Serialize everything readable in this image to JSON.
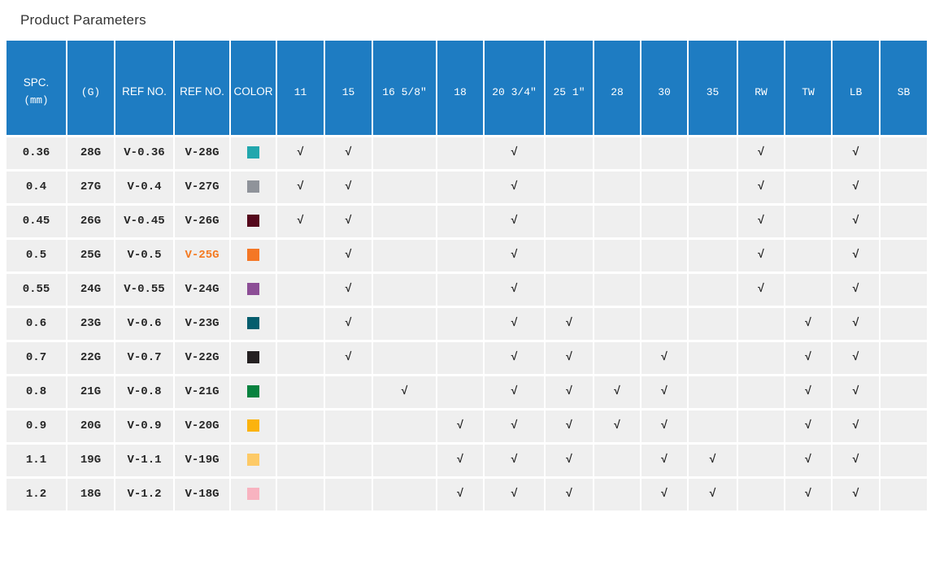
{
  "title": "Product Parameters",
  "colors": {
    "header_bg": "#1e7cc2",
    "row_bg": "#efefef",
    "highlight_text": "#f47a21",
    "header_text": "#ffffff",
    "body_text": "#262626"
  },
  "table": {
    "check_glyph": "√",
    "columns": [
      {
        "label": "SPC.",
        "sub": "(mm)"
      },
      {
        "label": "(G)"
      },
      {
        "label": "REF NO."
      },
      {
        "label": "REF NO."
      },
      {
        "label": "COLOR"
      },
      {
        "label": "11"
      },
      {
        "label": "15"
      },
      {
        "label": "16 5/8″"
      },
      {
        "label": "18"
      },
      {
        "label": "20 3/4″"
      },
      {
        "label": "25 1″"
      },
      {
        "label": "28"
      },
      {
        "label": "30"
      },
      {
        "label": "35"
      },
      {
        "label": "RW"
      },
      {
        "label": "TW"
      },
      {
        "label": "LB"
      },
      {
        "label": "SB"
      }
    ],
    "rows": [
      {
        "spc": "0.36",
        "g": "28G",
        "ref1": "V-0.36",
        "ref2": "V-28G",
        "highlight": false,
        "swatch": "#22a7ad",
        "checks": [
          1,
          1,
          0,
          0,
          1,
          0,
          0,
          0,
          0,
          1,
          0,
          1,
          0
        ]
      },
      {
        "spc": "0.4",
        "g": "27G",
        "ref1": "V-0.4",
        "ref2": "V-27G",
        "highlight": false,
        "swatch": "#8f939a",
        "checks": [
          1,
          1,
          0,
          0,
          1,
          0,
          0,
          0,
          0,
          1,
          0,
          1,
          0
        ]
      },
      {
        "spc": "0.45",
        "g": "26G",
        "ref1": "V-0.45",
        "ref2": "V-26G",
        "highlight": false,
        "swatch": "#55081c",
        "checks": [
          1,
          1,
          0,
          0,
          1,
          0,
          0,
          0,
          0,
          1,
          0,
          1,
          0
        ]
      },
      {
        "spc": "0.5",
        "g": "25G",
        "ref1": "V-0.5",
        "ref2": "V-25G",
        "highlight": true,
        "swatch": "#f47725",
        "checks": [
          0,
          1,
          0,
          0,
          1,
          0,
          0,
          0,
          0,
          1,
          0,
          1,
          0
        ]
      },
      {
        "spc": "0.55",
        "g": "24G",
        "ref1": "V-0.55",
        "ref2": "V-24G",
        "highlight": false,
        "swatch": "#8c4e96",
        "checks": [
          0,
          1,
          0,
          0,
          1,
          0,
          0,
          0,
          0,
          1,
          0,
          1,
          0
        ]
      },
      {
        "spc": "0.6",
        "g": "23G",
        "ref1": "V-0.6",
        "ref2": "V-23G",
        "highlight": false,
        "swatch": "#055d6d",
        "checks": [
          0,
          1,
          0,
          0,
          1,
          1,
          0,
          0,
          0,
          0,
          1,
          1,
          0
        ]
      },
      {
        "spc": "0.7",
        "g": "22G",
        "ref1": "V-0.7",
        "ref2": "V-22G",
        "highlight": false,
        "swatch": "#242021",
        "checks": [
          0,
          1,
          0,
          0,
          1,
          1,
          0,
          1,
          0,
          0,
          1,
          1,
          0
        ]
      },
      {
        "spc": "0.8",
        "g": "21G",
        "ref1": "V-0.8",
        "ref2": "V-21G",
        "highlight": false,
        "swatch": "#07823f",
        "checks": [
          0,
          0,
          1,
          0,
          1,
          1,
          1,
          1,
          0,
          0,
          1,
          1,
          0
        ]
      },
      {
        "spc": "0.9",
        "g": "20G",
        "ref1": "V-0.9",
        "ref2": "V-20G",
        "highlight": false,
        "swatch": "#fbb30e",
        "checks": [
          0,
          0,
          0,
          1,
          1,
          1,
          1,
          1,
          0,
          0,
          1,
          1,
          0
        ]
      },
      {
        "spc": "1.1",
        "g": "19G",
        "ref1": "V-1.1",
        "ref2": "V-19G",
        "highlight": false,
        "swatch": "#fdca67",
        "checks": [
          0,
          0,
          0,
          1,
          1,
          1,
          0,
          1,
          1,
          0,
          1,
          1,
          0
        ]
      },
      {
        "spc": "1.2",
        "g": "18G",
        "ref1": "V-1.2",
        "ref2": "V-18G",
        "highlight": false,
        "swatch": "#f8b3c0",
        "checks": [
          0,
          0,
          0,
          1,
          1,
          1,
          0,
          1,
          1,
          0,
          1,
          1,
          0
        ]
      }
    ]
  }
}
